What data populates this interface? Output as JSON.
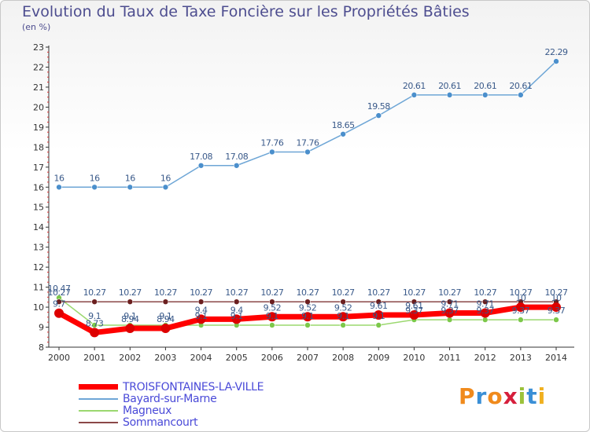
{
  "chart_data": {
    "type": "line",
    "title": "Evolution du Taux de Taxe Foncière sur les Propriétés Bâties",
    "subtitle": "(en %)",
    "x": [
      "2000",
      "2001",
      "2002",
      "2003",
      "2004",
      "2005",
      "2006",
      "2007",
      "2008",
      "2009",
      "2010",
      "2011",
      "2012",
      "2013",
      "2014"
    ],
    "ylim": [
      8,
      23
    ],
    "yticks": [
      "8",
      "9",
      "10",
      "11",
      "12",
      "13",
      "14",
      "15",
      "16",
      "17",
      "18",
      "19",
      "20",
      "21",
      "22",
      "23"
    ],
    "grid": false,
    "legend_position": "bottom-left",
    "series": [
      {
        "name": "TROISFONTAINES-LA-VILLE",
        "color": "#ff0000",
        "marker_color": "#dd0000",
        "width": 7,
        "values": [
          9.7,
          8.73,
          8.94,
          8.94,
          9.4,
          9.4,
          9.52,
          9.52,
          9.52,
          9.61,
          9.61,
          9.71,
          9.71,
          10.0,
          10.0
        ],
        "labels": [
          "9.7",
          "8.73",
          "8.94",
          "8.94",
          "9.4",
          "9.4",
          "9.52",
          "9.52",
          "9.52",
          "9.61",
          "9.61",
          "9.71",
          "9.71",
          "10",
          "10"
        ]
      },
      {
        "name": "Bayard-sur-Marne",
        "color": "#6ea6d6",
        "marker_color": "#4b8fcc",
        "width": 1.5,
        "values": [
          16,
          16,
          16,
          16,
          17.08,
          17.08,
          17.76,
          17.76,
          18.65,
          19.58,
          20.61,
          20.61,
          20.61,
          20.61,
          22.29
        ],
        "labels": [
          "16",
          "16",
          "16",
          "16",
          "17.08",
          "17.08",
          "17.76",
          "17.76",
          "18.65",
          "19.58",
          "20.61",
          "20.61",
          "20.61",
          "20.61",
          "22.29"
        ]
      },
      {
        "name": "Magneux",
        "color": "#9bd86f",
        "marker_color": "#7cc84a",
        "width": 1.5,
        "values": [
          10.47,
          9.1,
          9.1,
          9.1,
          9.1,
          9.1,
          9.1,
          9.1,
          9.1,
          9.1,
          9.37,
          9.37,
          9.37,
          9.37,
          9.37
        ],
        "labels": [
          "10.47",
          "9.1",
          "9.1",
          "9.1",
          "9.1",
          "9.1",
          "9.1",
          "9.1",
          "9.1",
          "9.1",
          "9.37",
          "9.37",
          "9.37",
          "9.37",
          "9.37"
        ]
      },
      {
        "name": "Sommancourt",
        "color": "#8b4848",
        "marker_color": "#6b1f1f",
        "width": 1.5,
        "values": [
          10.27,
          10.27,
          10.27,
          10.27,
          10.27,
          10.27,
          10.27,
          10.27,
          10.27,
          10.27,
          10.27,
          10.27,
          10.27,
          10.27,
          10.27
        ],
        "labels": [
          "10.27",
          "10.27",
          "10.27",
          "10.27",
          "10.27",
          "10.27",
          "10.27",
          "10.27",
          "10.27",
          "10.27",
          "10.27",
          "10.27",
          "10.27",
          "10.27",
          "10.27"
        ]
      }
    ]
  },
  "logo": {
    "letters": [
      "P",
      "r",
      "o",
      "x",
      "i",
      "t",
      "i"
    ],
    "colors": [
      "#f08a1c",
      "#3a8fd6",
      "#f08a1c",
      "#d61f3c",
      "#9bc23a",
      "#3a8fd6",
      "#f0b020"
    ]
  }
}
